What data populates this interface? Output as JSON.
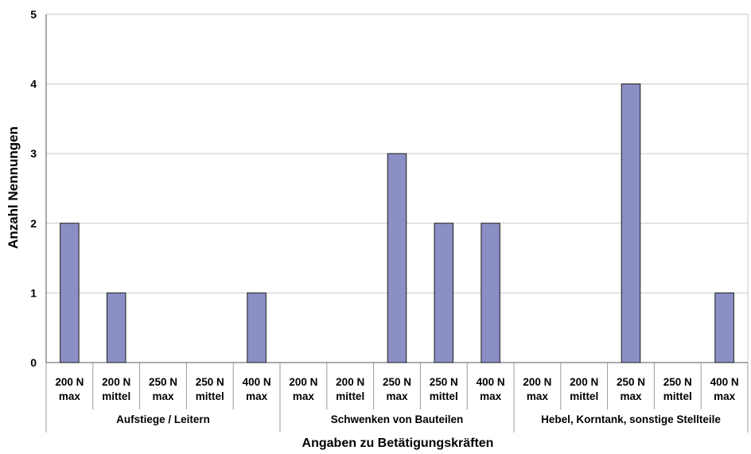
{
  "chart_data": {
    "type": "bar",
    "title": "",
    "xlabel": "Angaben zu Betätigungskräften",
    "ylabel": "Anzahl Nennungen",
    "ylim": [
      0,
      5
    ],
    "yticks": [
      0,
      1,
      2,
      3,
      4,
      5
    ],
    "grid": true,
    "legend": "none",
    "bar_color": "#8b8fc6",
    "groups": [
      {
        "label": "Aufstiege / Leitern",
        "categories": [
          {
            "line1": "200 N",
            "line2": "max",
            "value": 2
          },
          {
            "line1": "200 N",
            "line2": "mittel",
            "value": 1
          },
          {
            "line1": "250 N",
            "line2": "max",
            "value": 0
          },
          {
            "line1": "250 N",
            "line2": "mittel",
            "value": 0
          },
          {
            "line1": "400 N",
            "line2": "max",
            "value": 1
          }
        ]
      },
      {
        "label": "Schwenken von Bauteilen",
        "categories": [
          {
            "line1": "200 N",
            "line2": "max",
            "value": 0
          },
          {
            "line1": "200 N",
            "line2": "mittel",
            "value": 0
          },
          {
            "line1": "250 N",
            "line2": "max",
            "value": 3
          },
          {
            "line1": "250 N",
            "line2": "mittel",
            "value": 2
          },
          {
            "line1": "400 N",
            "line2": "max",
            "value": 2
          }
        ]
      },
      {
        "label": "Hebel, Korntank, sonstige Stellteile",
        "categories": [
          {
            "line1": "200 N",
            "line2": "max",
            "value": 0
          },
          {
            "line1": "200 N",
            "line2": "mittel",
            "value": 0
          },
          {
            "line1": "250 N",
            "line2": "max",
            "value": 4
          },
          {
            "line1": "250 N",
            "line2": "mittel",
            "value": 0
          },
          {
            "line1": "400 N",
            "line2": "max",
            "value": 1
          }
        ]
      }
    ]
  }
}
